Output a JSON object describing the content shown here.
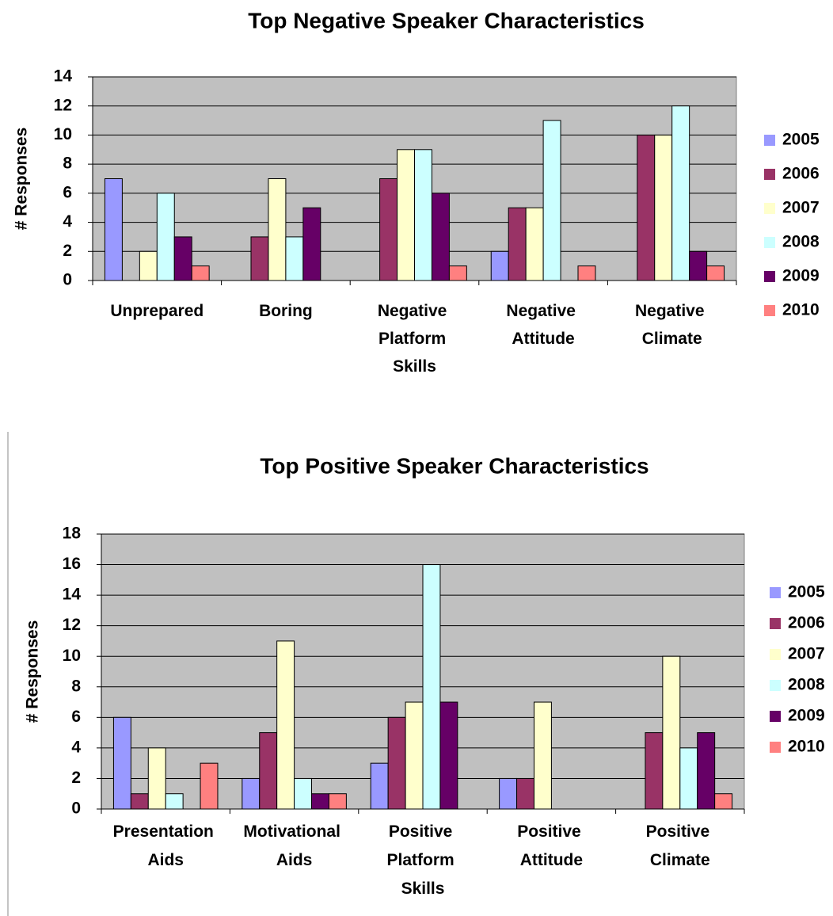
{
  "chart_data": [
    {
      "type": "bar",
      "title": "Top Negative Speaker Characteristics",
      "y_label": "# Responses",
      "categories": [
        "Unprepared",
        "Boring",
        "Negative Platform Skills",
        "Negative Attitude",
        "Negative Climate"
      ],
      "series": [
        {
          "name": "2005",
          "color": "#9999ff",
          "values": [
            7,
            0,
            0,
            2,
            0
          ]
        },
        {
          "name": "2006",
          "color": "#993366",
          "values": [
            0,
            3,
            7,
            5,
            10
          ]
        },
        {
          "name": "2007",
          "color": "#ffffcc",
          "values": [
            2,
            7,
            9,
            5,
            10
          ]
        },
        {
          "name": "2008",
          "color": "#ccffff",
          "values": [
            6,
            3,
            9,
            11,
            12
          ]
        },
        {
          "name": "2009",
          "color": "#660066",
          "values": [
            3,
            5,
            6,
            0,
            2
          ]
        },
        {
          "name": "2010",
          "color": "#ff8080",
          "values": [
            1,
            0,
            1,
            1,
            1
          ]
        }
      ],
      "ylim": [
        0,
        14
      ],
      "yticks": [
        0,
        2,
        4,
        6,
        8,
        10,
        12,
        14
      ],
      "grid": true,
      "legend": "right"
    },
    {
      "type": "bar",
      "title": "Top Positive Speaker Characteristics",
      "y_label": "# Responses",
      "categories": [
        "Presentation Aids",
        "Motivational Aids",
        "Positive Platform Skills",
        "Positive Attitude",
        "Positive Climate"
      ],
      "series": [
        {
          "name": "2005",
          "color": "#9999ff",
          "values": [
            6,
            2,
            3,
            2,
            0
          ]
        },
        {
          "name": "2006",
          "color": "#993366",
          "values": [
            1,
            5,
            6,
            2,
            5
          ]
        },
        {
          "name": "2007",
          "color": "#ffffcc",
          "values": [
            4,
            11,
            7,
            7,
            10
          ]
        },
        {
          "name": "2008",
          "color": "#ccffff",
          "values": [
            1,
            2,
            16,
            0,
            4
          ]
        },
        {
          "name": "2009",
          "color": "#660066",
          "values": [
            0,
            1,
            7,
            0,
            5
          ]
        },
        {
          "name": "2010",
          "color": "#ff8080",
          "values": [
            3,
            1,
            0,
            0,
            1
          ]
        }
      ],
      "ylim": [
        0,
        18
      ],
      "yticks": [
        0,
        2,
        4,
        6,
        8,
        10,
        12,
        14,
        16,
        18
      ],
      "grid": true,
      "legend": "right"
    }
  ]
}
